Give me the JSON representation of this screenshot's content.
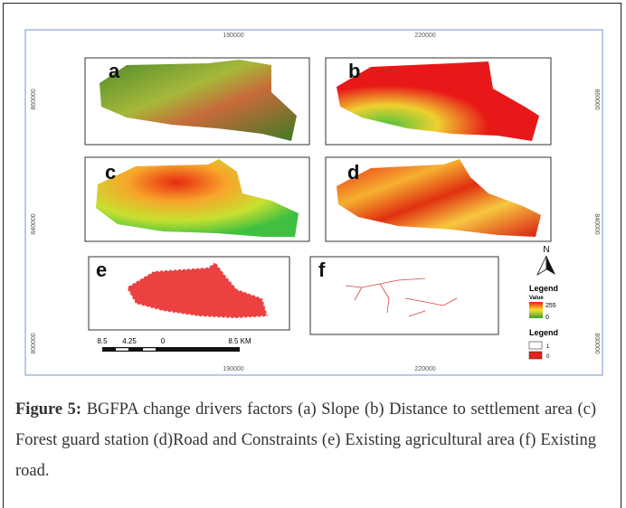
{
  "figure": {
    "coords_top": [
      "190000",
      "220000"
    ],
    "coords_bottom": [
      "190000",
      "220000"
    ],
    "coords_left": [
      "860000",
      "840000",
      "800000"
    ],
    "coords_right": [
      "860000",
      "840000",
      "800000"
    ],
    "panels": [
      "a",
      "b",
      "c",
      "d",
      "e",
      "f"
    ],
    "north": "N",
    "legend_value": {
      "title": "Legend",
      "subtitle": "Value",
      "high": "255",
      "low": "0"
    },
    "legend_binary": {
      "title": "Legend",
      "items": [
        "1",
        "0"
      ]
    },
    "scale_bar": [
      "8.5",
      "4.25",
      "0",
      "8.5 KM"
    ]
  },
  "caption": {
    "label": "Figure 5:",
    "text": "BGFPA change drivers factors (a) Slope (b) Distance to settlement area (c) Forest guard station (d)Road and Constraints (e) Existing agricultural area (f) Existing road."
  }
}
